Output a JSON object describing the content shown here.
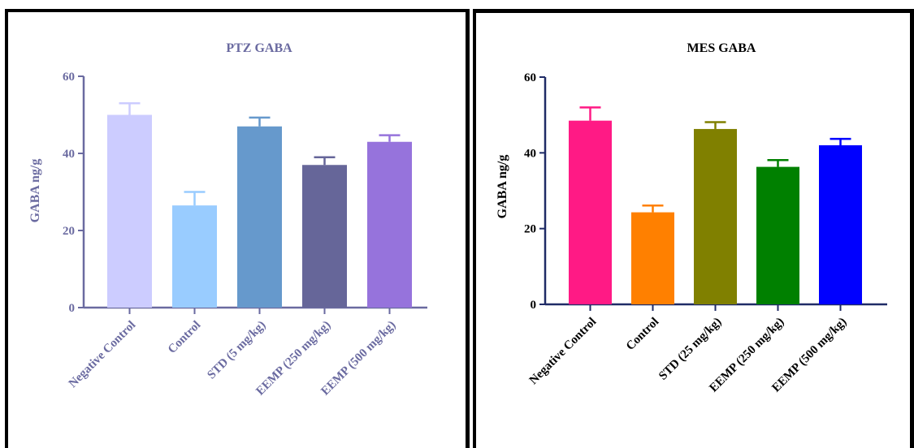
{
  "chart_data": [
    {
      "type": "bar",
      "title": "PTZ GABA",
      "ylabel": "GABA ng/g",
      "xlabel": "",
      "ylim": [
        0,
        60
      ],
      "yticks": [
        "0",
        "20",
        "40",
        "60"
      ],
      "categories": [
        "Negative Control",
        "Control",
        "STD (5 mg/kg)",
        "EEMP (250 mg/kg)",
        "EEMP (500 mg/kg)"
      ],
      "values": [
        50,
        26.5,
        47,
        37,
        43
      ],
      "errors": [
        3,
        3.5,
        2.3,
        2,
        1.7
      ],
      "bar_colors": [
        "#ccccff",
        "#99ccff",
        "#6699cc",
        "#666699",
        "#9673dc"
      ],
      "text_color": "#6a6aa0",
      "axis_color": "#6a6aa0",
      "grid": false
    },
    {
      "type": "bar",
      "title": "MES GABA",
      "ylabel": "GABA ng/g",
      "xlabel": "",
      "ylim": [
        0,
        60
      ],
      "yticks": [
        "0",
        "20",
        "40",
        "60"
      ],
      "categories": [
        "Negative Control",
        "Control",
        "STD (25 mg/kg)",
        "EEMP (250 mg/kg)",
        "EEMP (500 mg/kg)"
      ],
      "values": [
        48.5,
        24.3,
        46.3,
        36.3,
        42
      ],
      "errors": [
        3.5,
        1.8,
        1.8,
        1.8,
        1.7
      ],
      "bar_colors": [
        "#ff1a85",
        "#ff8000",
        "#808000",
        "#008000",
        "#0000ff"
      ],
      "text_color": "#000000",
      "axis_color": "#1f2b66",
      "grid": false
    }
  ]
}
